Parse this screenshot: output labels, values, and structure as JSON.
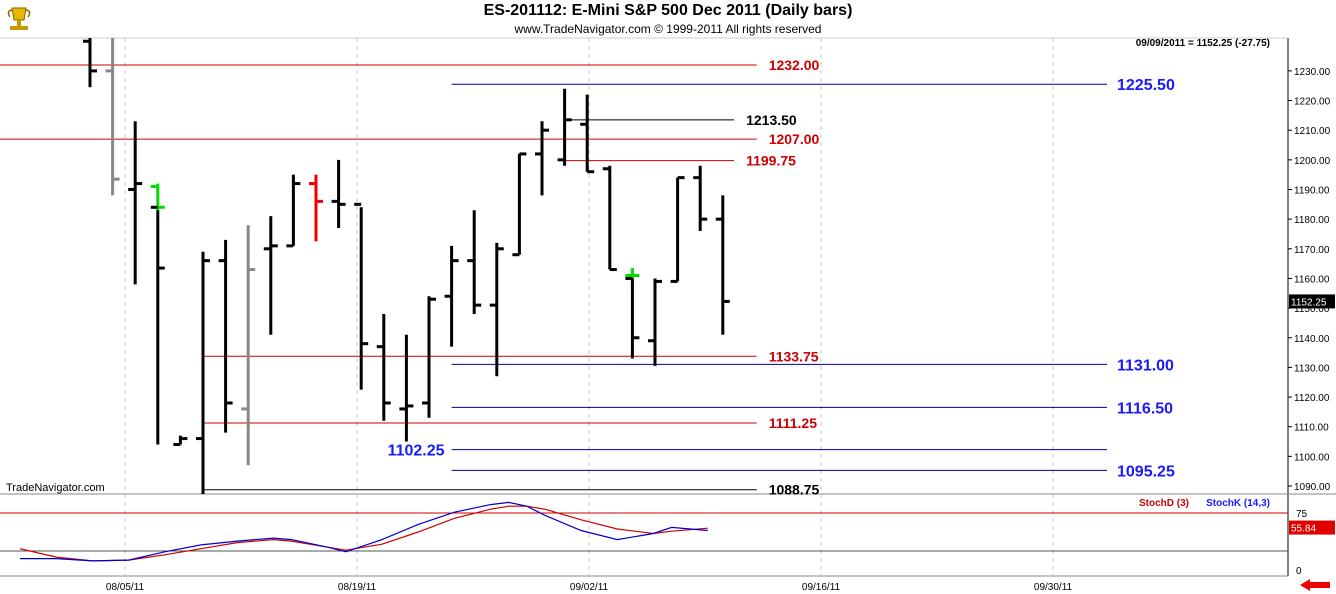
{
  "header": {
    "title": "ES-201112:  E-Mini S&P 500 Dec 2011  (Daily bars)",
    "subtitle": "www.TradeNavigator.com © 1999-2011 All rights reserved",
    "last_value": "09/09/2011 = 1152.25 (-27.75)",
    "watermark": "TradeNavigator.com",
    "price_badge": "1152.25",
    "logo_icon": "trophy-icon",
    "nav_icon": "left-arrow-icon"
  },
  "chart_data": [
    {
      "type": "ohlc",
      "title": "ES-201112:  E-Mini S&P 500 Dec 2011  (Daily bars)",
      "y_ticks": [
        1090,
        1100,
        1110,
        1120,
        1130,
        1140,
        1150,
        1160,
        1170,
        1180,
        1190,
        1200,
        1210,
        1220,
        1230
      ],
      "x_ticks": [
        "08/05/11",
        "08/19/11",
        "09/02/11",
        "09/16/11",
        "09/30/11"
      ],
      "colors": {
        "normal": "#000000",
        "up_signal": "#00dd00",
        "down_signal": "#ee0000",
        "stale": "#888888",
        "red_line": "#cc0000",
        "blue_line": "#000099",
        "black_line": "#000000"
      },
      "bars": [
        {
          "slot": 0,
          "o": 1240,
          "h": 1242,
          "l": 1224.5,
          "c": 1230,
          "color": "normal"
        },
        {
          "slot": 1,
          "o": 1230,
          "h": 1242,
          "l": 1188,
          "c": 1193.5,
          "color": "stale"
        },
        {
          "slot": 2,
          "o": 1190,
          "h": 1213,
          "l": 1158,
          "c": 1192,
          "color": "normal"
        },
        {
          "slot": 3,
          "o": 1191,
          "h": 1192,
          "l": 1183,
          "c": 1184,
          "color": "up_signal"
        },
        {
          "slot": 3,
          "o": 1184,
          "h": 1183,
          "l": 1104,
          "c": 1163.5,
          "color": "normal"
        },
        {
          "slot": 4,
          "o": 1104,
          "h": 1107,
          "l": 1104,
          "c": 1106,
          "color": "normal"
        },
        {
          "slot": 5,
          "o": 1106,
          "h": 1169,
          "l": 1084,
          "c": 1166,
          "color": "normal"
        },
        {
          "slot": 6,
          "o": 1166,
          "h": 1173,
          "l": 1108,
          "c": 1118,
          "color": "normal"
        },
        {
          "slot": 7,
          "o": 1116,
          "h": 1178,
          "l": 1097,
          "c": 1163,
          "color": "stale"
        },
        {
          "slot": 8,
          "o": 1170,
          "h": 1181,
          "l": 1141,
          "c": 1171,
          "color": "normal"
        },
        {
          "slot": 9,
          "o": 1171,
          "h": 1195,
          "l": 1171,
          "c": 1192,
          "color": "normal"
        },
        {
          "slot": 10,
          "o": 1192,
          "h": 1195,
          "l": 1172.5,
          "c": 1186,
          "color": "down_signal"
        },
        {
          "slot": 11,
          "o": 1186,
          "h": 1200,
          "l": 1177,
          "c": 1185,
          "color": "normal"
        },
        {
          "slot": 12,
          "o": 1185,
          "h": 1184,
          "l": 1122.5,
          "c": 1138,
          "color": "normal"
        },
        {
          "slot": 13,
          "o": 1137,
          "h": 1148,
          "l": 1112,
          "c": 1118,
          "color": "normal"
        },
        {
          "slot": 14,
          "o": 1116,
          "h": 1141,
          "l": 1105,
          "c": 1117,
          "color": "normal"
        },
        {
          "slot": 15,
          "o": 1118,
          "h": 1154,
          "l": 1113,
          "c": 1153,
          "color": "normal"
        },
        {
          "slot": 16,
          "o": 1154,
          "h": 1171,
          "l": 1137,
          "c": 1166,
          "color": "normal"
        },
        {
          "slot": 17,
          "o": 1166,
          "h": 1183,
          "l": 1148,
          "c": 1151,
          "color": "normal"
        },
        {
          "slot": 18,
          "o": 1151,
          "h": 1172,
          "l": 1127,
          "c": 1170,
          "color": "normal"
        },
        {
          "slot": 19,
          "o": 1168,
          "h": 1202,
          "l": 1168,
          "c": 1202,
          "color": "normal"
        },
        {
          "slot": 20,
          "o": 1202,
          "h": 1213,
          "l": 1188,
          "c": 1210,
          "color": "normal"
        },
        {
          "slot": 21,
          "o": 1200,
          "h": 1224,
          "l": 1198,
          "c": 1213.5,
          "color": "normal"
        },
        {
          "slot": 22,
          "o": 1212,
          "h": 1222,
          "l": 1196,
          "c": 1196,
          "color": "normal"
        },
        {
          "slot": 23,
          "o": 1197,
          "h": 1198,
          "l": 1163,
          "c": 1163,
          "color": "normal"
        },
        {
          "slot": 24,
          "o": 1161,
          "h": 1163.5,
          "l": 1160,
          "c": 1161,
          "color": "up_signal"
        },
        {
          "slot": 24,
          "o": 1160,
          "h": 1160,
          "l": 1133,
          "c": 1140,
          "color": "normal"
        },
        {
          "slot": 25,
          "o": 1139,
          "h": 1160,
          "l": 1130.5,
          "c": 1159,
          "color": "normal"
        },
        {
          "slot": 26,
          "o": 1159,
          "h": 1194,
          "l": 1159,
          "c": 1194,
          "color": "normal"
        },
        {
          "slot": 27,
          "o": 1194,
          "h": 1198,
          "l": 1176,
          "c": 1180,
          "color": "normal"
        },
        {
          "slot": 28,
          "o": 1180,
          "h": 1188,
          "l": 1141,
          "c": 1152.25,
          "color": "normal"
        }
      ],
      "levels": [
        {
          "value": 1232.0,
          "label": "1232.00",
          "color": "red_line",
          "from_slot": -4,
          "to_slot": 29.5,
          "label_side": "end"
        },
        {
          "value": 1225.5,
          "label": "1225.50",
          "color": "blue_line",
          "from_slot": 16,
          "to_slot": 45,
          "label_side": "right"
        },
        {
          "value": 1213.5,
          "label": "1213.50",
          "color": "black_line",
          "from_slot": 21,
          "to_slot": 28.5,
          "label_side": "end"
        },
        {
          "value": 1207.0,
          "label": "1207.00",
          "color": "red_line",
          "from_slot": -4,
          "to_slot": 29.5,
          "label_side": "end"
        },
        {
          "value": 1199.75,
          "label": "1199.75",
          "color": "red_line",
          "from_slot": 21,
          "to_slot": 28.5,
          "label_side": "end"
        },
        {
          "value": 1133.75,
          "label": "1133.75",
          "color": "red_line",
          "from_slot": 5,
          "to_slot": 29.5,
          "label_side": "end"
        },
        {
          "value": 1131.0,
          "label": "1131.00",
          "color": "blue_line",
          "from_slot": 16,
          "to_slot": 45,
          "label_side": "right"
        },
        {
          "value": 1116.5,
          "label": "1116.50",
          "color": "blue_line",
          "from_slot": 16,
          "to_slot": 45,
          "label_side": "right"
        },
        {
          "value": 1111.25,
          "label": "1111.25",
          "color": "red_line",
          "from_slot": 5,
          "to_slot": 29.5,
          "label_side": "end"
        },
        {
          "value": 1102.25,
          "label": "1102.25",
          "color": "blue_line",
          "from_slot": 16,
          "to_slot": 45,
          "label_side": "left"
        },
        {
          "value": 1095.25,
          "label": "1095.25",
          "color": "blue_line",
          "from_slot": 16,
          "to_slot": 45,
          "label_side": "right"
        },
        {
          "value": 1088.75,
          "label": "1088.75",
          "color": "black_line",
          "from_slot": 5,
          "to_slot": 29.5,
          "label_side": "end"
        }
      ]
    },
    {
      "type": "line",
      "legend": [
        "StochD (3)",
        "StochK (14,3)"
      ],
      "y_ticks": [
        0,
        75
      ],
      "last_value_badge": "55.84",
      "reference_lines": [
        75,
        25
      ],
      "series": [
        {
          "name": "StochD (3)",
          "color": "#cc0000",
          "values": [
            [
              0,
              28
            ],
            [
              2,
              17
            ],
            [
              4,
              12
            ],
            [
              6,
              13
            ],
            [
              8,
              20
            ],
            [
              10,
              28
            ],
            [
              12,
              36
            ],
            [
              14,
              40
            ],
            [
              15,
              38
            ],
            [
              17,
              30
            ],
            [
              18,
              26
            ],
            [
              20,
              34
            ],
            [
              22,
              50
            ],
            [
              24,
              68
            ],
            [
              26,
              80
            ],
            [
              27,
              84
            ],
            [
              28,
              84
            ],
            [
              29,
              80
            ],
            [
              31,
              66
            ],
            [
              33,
              54
            ],
            [
              35,
              48
            ],
            [
              36,
              51
            ],
            [
              38,
              55
            ]
          ]
        },
        {
          "name": "StochK (14,3)",
          "color": "#0000cc",
          "values": [
            [
              0,
              15
            ],
            [
              2,
              15
            ],
            [
              4,
              12
            ],
            [
              6,
              13
            ],
            [
              8,
              24
            ],
            [
              10,
              33
            ],
            [
              12,
              38
            ],
            [
              14,
              42
            ],
            [
              15,
              40
            ],
            [
              17,
              30
            ],
            [
              18,
              24
            ],
            [
              20,
              40
            ],
            [
              22,
              60
            ],
            [
              24,
              76
            ],
            [
              26,
              86
            ],
            [
              27,
              89
            ],
            [
              28,
              84
            ],
            [
              29,
              72
            ],
            [
              31,
              52
            ],
            [
              33,
              40
            ],
            [
              35,
              48
            ],
            [
              36,
              56
            ],
            [
              38,
              52
            ]
          ]
        }
      ]
    }
  ]
}
